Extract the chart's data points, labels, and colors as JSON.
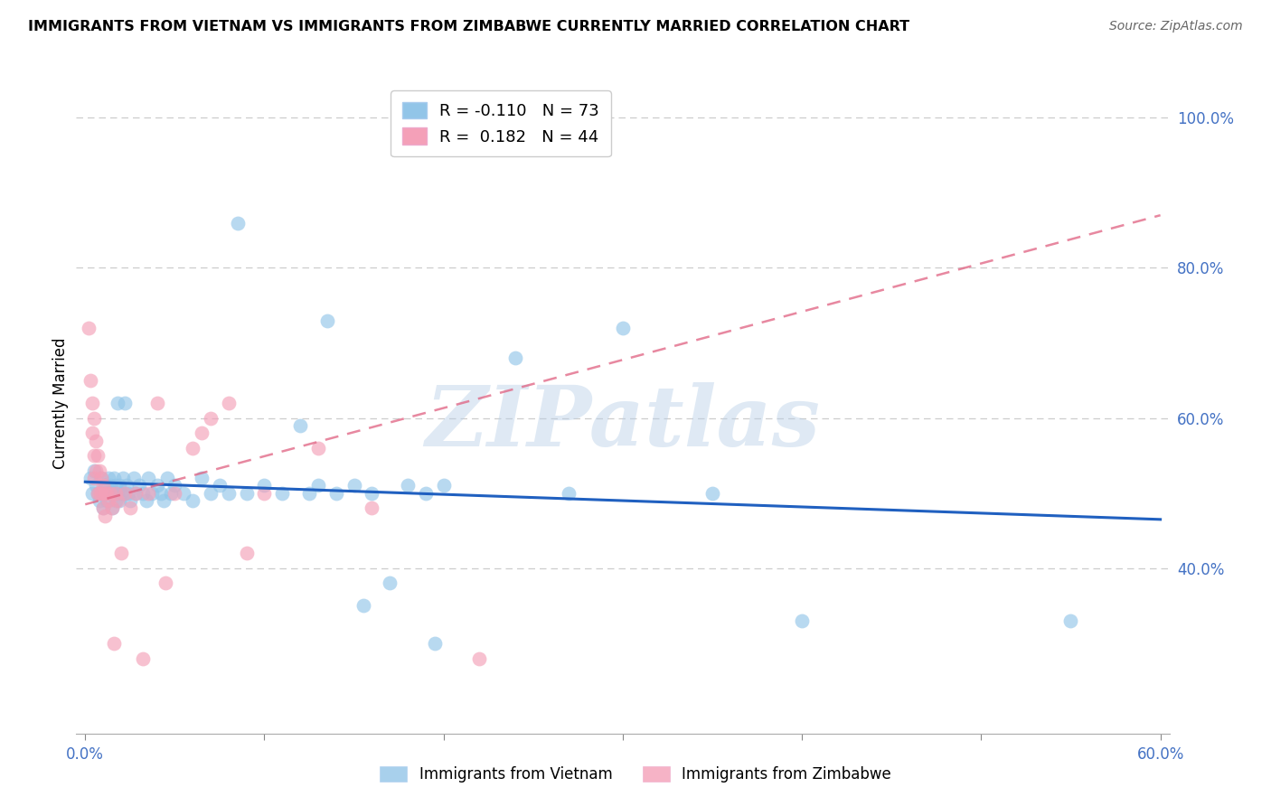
{
  "title": "IMMIGRANTS FROM VIETNAM VS IMMIGRANTS FROM ZIMBABWE CURRENTLY MARRIED CORRELATION CHART",
  "source": "Source: ZipAtlas.com",
  "ylabel": "Currently Married",
  "color_vietnam": "#92C5E8",
  "color_zimbabwe": "#F4A0B8",
  "color_line_vietnam": "#2060C0",
  "color_line_zimbabwe": "#E06080",
  "watermark_text": "ZIPatlas",
  "legend_r1": "R = -0.110",
  "legend_n1": "N = 73",
  "legend_r2": "R =  0.182",
  "legend_n2": "N = 44",
  "vietnam_points": [
    [
      0.003,
      0.52
    ],
    [
      0.004,
      0.5
    ],
    [
      0.005,
      0.53
    ],
    [
      0.006,
      0.51
    ],
    [
      0.007,
      0.5
    ],
    [
      0.008,
      0.49
    ],
    [
      0.009,
      0.52
    ],
    [
      0.01,
      0.5
    ],
    [
      0.01,
      0.48
    ],
    [
      0.011,
      0.51
    ],
    [
      0.012,
      0.5
    ],
    [
      0.012,
      0.49
    ],
    [
      0.013,
      0.52
    ],
    [
      0.013,
      0.5
    ],
    [
      0.014,
      0.51
    ],
    [
      0.015,
      0.5
    ],
    [
      0.015,
      0.48
    ],
    [
      0.016,
      0.52
    ],
    [
      0.016,
      0.5
    ],
    [
      0.017,
      0.51
    ],
    [
      0.017,
      0.49
    ],
    [
      0.018,
      0.62
    ],
    [
      0.018,
      0.5
    ],
    [
      0.019,
      0.51
    ],
    [
      0.019,
      0.49
    ],
    [
      0.02,
      0.5
    ],
    [
      0.021,
      0.52
    ],
    [
      0.022,
      0.62
    ],
    [
      0.022,
      0.5
    ],
    [
      0.023,
      0.51
    ],
    [
      0.024,
      0.5
    ],
    [
      0.025,
      0.49
    ],
    [
      0.027,
      0.52
    ],
    [
      0.028,
      0.5
    ],
    [
      0.03,
      0.51
    ],
    [
      0.032,
      0.5
    ],
    [
      0.034,
      0.49
    ],
    [
      0.035,
      0.52
    ],
    [
      0.037,
      0.5
    ],
    [
      0.04,
      0.51
    ],
    [
      0.042,
      0.5
    ],
    [
      0.044,
      0.49
    ],
    [
      0.046,
      0.52
    ],
    [
      0.048,
      0.5
    ],
    [
      0.05,
      0.51
    ],
    [
      0.055,
      0.5
    ],
    [
      0.06,
      0.49
    ],
    [
      0.065,
      0.52
    ],
    [
      0.07,
      0.5
    ],
    [
      0.075,
      0.51
    ],
    [
      0.08,
      0.5
    ],
    [
      0.085,
      0.86
    ],
    [
      0.09,
      0.5
    ],
    [
      0.1,
      0.51
    ],
    [
      0.11,
      0.5
    ],
    [
      0.12,
      0.59
    ],
    [
      0.125,
      0.5
    ],
    [
      0.13,
      0.51
    ],
    [
      0.135,
      0.73
    ],
    [
      0.14,
      0.5
    ],
    [
      0.15,
      0.51
    ],
    [
      0.155,
      0.35
    ],
    [
      0.16,
      0.5
    ],
    [
      0.17,
      0.38
    ],
    [
      0.18,
      0.51
    ],
    [
      0.19,
      0.5
    ],
    [
      0.195,
      0.3
    ],
    [
      0.2,
      0.51
    ],
    [
      0.24,
      0.68
    ],
    [
      0.27,
      0.5
    ],
    [
      0.3,
      0.72
    ],
    [
      0.35,
      0.5
    ],
    [
      0.4,
      0.33
    ],
    [
      0.55,
      0.33
    ]
  ],
  "zimbabwe_points": [
    [
      0.002,
      0.72
    ],
    [
      0.003,
      0.65
    ],
    [
      0.004,
      0.62
    ],
    [
      0.004,
      0.58
    ],
    [
      0.005,
      0.6
    ],
    [
      0.005,
      0.55
    ],
    [
      0.005,
      0.52
    ],
    [
      0.006,
      0.57
    ],
    [
      0.006,
      0.53
    ],
    [
      0.007,
      0.55
    ],
    [
      0.007,
      0.5
    ],
    [
      0.008,
      0.53
    ],
    [
      0.008,
      0.5
    ],
    [
      0.009,
      0.52
    ],
    [
      0.009,
      0.5
    ],
    [
      0.01,
      0.51
    ],
    [
      0.01,
      0.48
    ],
    [
      0.011,
      0.5
    ],
    [
      0.011,
      0.47
    ],
    [
      0.012,
      0.5
    ],
    [
      0.013,
      0.49
    ],
    [
      0.014,
      0.5
    ],
    [
      0.015,
      0.48
    ],
    [
      0.016,
      0.3
    ],
    [
      0.017,
      0.5
    ],
    [
      0.018,
      0.49
    ],
    [
      0.02,
      0.42
    ],
    [
      0.022,
      0.5
    ],
    [
      0.025,
      0.48
    ],
    [
      0.028,
      0.5
    ],
    [
      0.032,
      0.28
    ],
    [
      0.035,
      0.5
    ],
    [
      0.04,
      0.62
    ],
    [
      0.045,
      0.38
    ],
    [
      0.05,
      0.5
    ],
    [
      0.06,
      0.56
    ],
    [
      0.065,
      0.58
    ],
    [
      0.07,
      0.6
    ],
    [
      0.08,
      0.62
    ],
    [
      0.09,
      0.42
    ],
    [
      0.1,
      0.5
    ],
    [
      0.13,
      0.56
    ],
    [
      0.16,
      0.48
    ],
    [
      0.22,
      0.28
    ]
  ],
  "xlim": [
    -0.005,
    0.605
  ],
  "ylim": [
    0.18,
    1.06
  ],
  "xticks": [
    0.0,
    0.1,
    0.2,
    0.3,
    0.4,
    0.5,
    0.6
  ],
  "yticks_right": [
    0.4,
    0.6,
    0.8,
    1.0
  ],
  "ytick_labels": [
    "40.0%",
    "60.0%",
    "80.0%",
    "100.0%"
  ],
  "xtick_show": [
    "0.0%",
    "",
    "",
    "",
    "",
    "",
    "60.0%"
  ],
  "viet_trend_x0": 0.0,
  "viet_trend_y0": 0.515,
  "viet_trend_x1": 0.6,
  "viet_trend_y1": 0.465,
  "zimb_trend_x0": 0.0,
  "zimb_trend_y0": 0.485,
  "zimb_trend_x1": 0.6,
  "zimb_trend_y1": 0.87
}
